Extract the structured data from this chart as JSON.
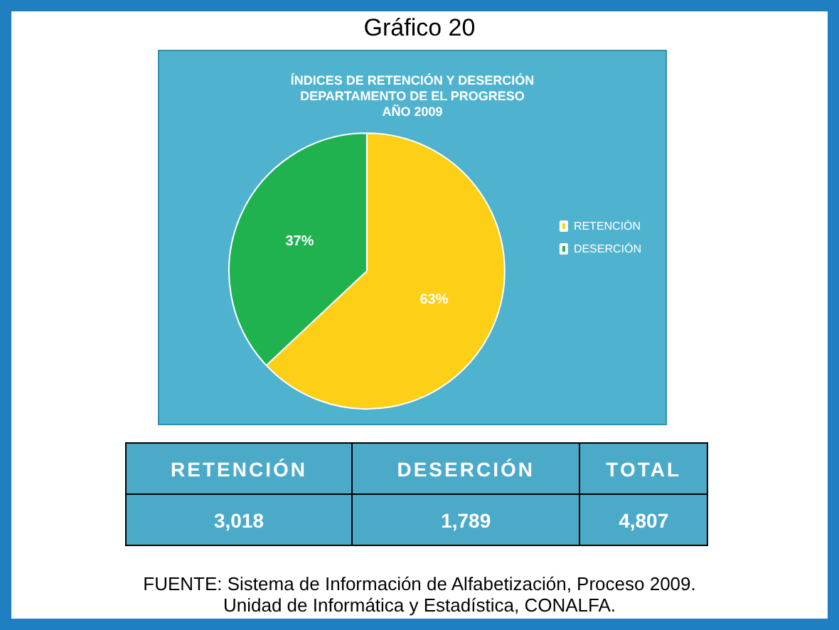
{
  "chart_data": [
    {
      "type": "pie",
      "title": "Gráfico 20",
      "subtitle": "ÍNDICES DE RETENCIÓN Y DESERCIÓN\nDEPARTAMENTO DE EL PROGRESO\nAÑO 2009",
      "categories": [
        "RETENCIÓN",
        "DESERCIÓN"
      ],
      "values": [
        63,
        37
      ],
      "colors": [
        "#fdd017",
        "#1fb24f"
      ],
      "value_labels": [
        "63%",
        "37%"
      ],
      "legend": "right"
    },
    {
      "type": "other",
      "categories": [
        "RETENCIÓN",
        "DESERCIÓN",
        "TOTAL"
      ],
      "values": [
        3018,
        1789,
        4807
      ],
      "value_labels": [
        "3,018",
        "1,789",
        "4,807"
      ],
      "annotations": [
        "FUENTE: Sistema de Información de Alfabetización, Proceso 2009.\nUnidad de Informática y Estadística, CONALFA."
      ]
    }
  ]
}
